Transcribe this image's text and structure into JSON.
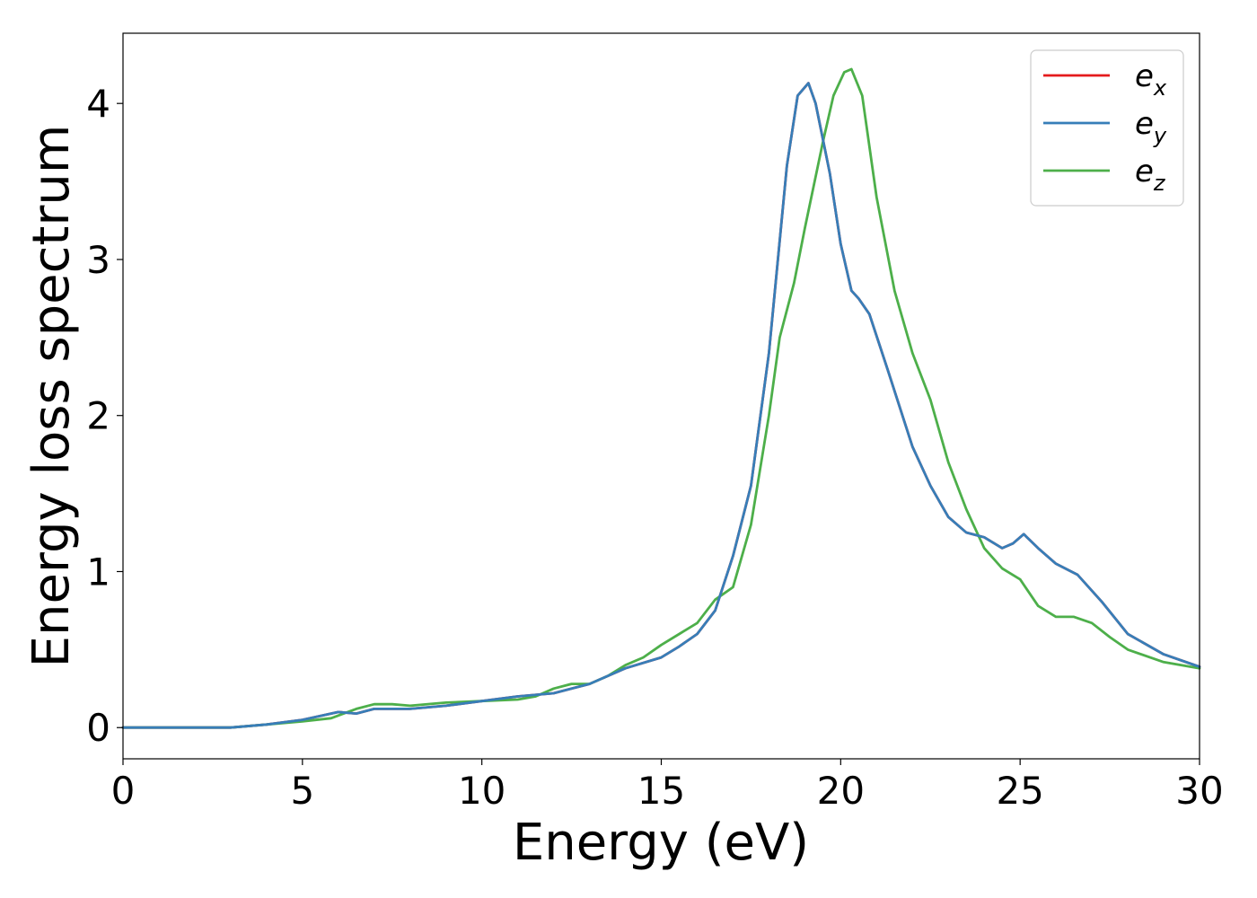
{
  "chart_data": {
    "type": "line",
    "xlabel": "Energy (eV)",
    "ylabel": "Energy loss spectrum",
    "xlim": [
      0,
      30
    ],
    "ylim": [
      -0.2,
      4.45
    ],
    "xticks": [
      0,
      5,
      10,
      15,
      20,
      25,
      30
    ],
    "yticks": [
      0,
      1,
      2,
      3,
      4
    ],
    "grid": false,
    "legend_position": "top-right",
    "series": [
      {
        "name": "e_x",
        "label_main": "e",
        "label_sub": "x",
        "color": "#e41a1c",
        "x": [
          0,
          1,
          2,
          3,
          4,
          5,
          6,
          6.5,
          7,
          8,
          9,
          10,
          11,
          12,
          13,
          14,
          15,
          15.5,
          16,
          16.5,
          17,
          17.5,
          18,
          18.5,
          18.8,
          19.1,
          19.3,
          19.7,
          20,
          20.3,
          20.5,
          20.8,
          21.3,
          22,
          22.5,
          23,
          23.5,
          24,
          24.5,
          24.8,
          25.1,
          25.5,
          26,
          26.6,
          27.3,
          28,
          29,
          30
        ],
        "y": [
          0,
          0,
          0,
          0,
          0.02,
          0.05,
          0.1,
          0.09,
          0.12,
          0.12,
          0.14,
          0.17,
          0.2,
          0.22,
          0.28,
          0.38,
          0.45,
          0.52,
          0.6,
          0.75,
          1.1,
          1.55,
          2.4,
          3.6,
          4.05,
          4.13,
          4.0,
          3.55,
          3.1,
          2.8,
          2.75,
          2.65,
          2.3,
          1.8,
          1.55,
          1.35,
          1.25,
          1.22,
          1.15,
          1.18,
          1.24,
          1.15,
          1.05,
          0.98,
          0.8,
          0.6,
          0.47,
          0.39
        ]
      },
      {
        "name": "e_y",
        "label_main": "e",
        "label_sub": "y",
        "color": "#377eb8",
        "x": [
          0,
          1,
          2,
          3,
          4,
          5,
          6,
          6.5,
          7,
          8,
          9,
          10,
          11,
          12,
          13,
          14,
          15,
          15.5,
          16,
          16.5,
          17,
          17.5,
          18,
          18.5,
          18.8,
          19.1,
          19.3,
          19.7,
          20,
          20.3,
          20.5,
          20.8,
          21.3,
          22,
          22.5,
          23,
          23.5,
          24,
          24.5,
          24.8,
          25.1,
          25.5,
          26,
          26.6,
          27.3,
          28,
          29,
          30
        ],
        "y": [
          0,
          0,
          0,
          0,
          0.02,
          0.05,
          0.1,
          0.09,
          0.12,
          0.12,
          0.14,
          0.17,
          0.2,
          0.22,
          0.28,
          0.38,
          0.45,
          0.52,
          0.6,
          0.75,
          1.1,
          1.55,
          2.4,
          3.6,
          4.05,
          4.13,
          4.0,
          3.55,
          3.1,
          2.8,
          2.75,
          2.65,
          2.3,
          1.8,
          1.55,
          1.35,
          1.25,
          1.22,
          1.15,
          1.18,
          1.24,
          1.15,
          1.05,
          0.98,
          0.8,
          0.6,
          0.47,
          0.39
        ]
      },
      {
        "name": "e_z",
        "label_main": "e",
        "label_sub": "z",
        "color": "#4daf4a",
        "x": [
          0,
          1,
          2,
          3,
          4,
          5,
          5.8,
          6.5,
          7,
          7.5,
          8,
          9,
          10,
          11,
          11.5,
          12,
          12.5,
          13,
          13.5,
          14,
          14.5,
          15,
          15.5,
          16,
          16.5,
          17,
          17.5,
          18,
          18.3,
          18.7,
          19,
          19.5,
          19.8,
          20.1,
          20.3,
          20.6,
          21,
          21.5,
          22,
          22.5,
          23,
          23.5,
          24,
          24.5,
          25,
          25.5,
          26,
          26.5,
          27,
          27.5,
          28,
          29,
          30
        ],
        "y": [
          0,
          0,
          0,
          0,
          0.02,
          0.04,
          0.06,
          0.12,
          0.15,
          0.15,
          0.14,
          0.16,
          0.17,
          0.18,
          0.2,
          0.25,
          0.28,
          0.28,
          0.33,
          0.4,
          0.45,
          0.53,
          0.6,
          0.67,
          0.82,
          0.9,
          1.3,
          2.0,
          2.5,
          2.85,
          3.2,
          3.75,
          4.05,
          4.2,
          4.22,
          4.05,
          3.4,
          2.8,
          2.4,
          2.1,
          1.7,
          1.4,
          1.15,
          1.02,
          0.95,
          0.78,
          0.71,
          0.71,
          0.67,
          0.58,
          0.5,
          0.42,
          0.38
        ]
      }
    ]
  }
}
